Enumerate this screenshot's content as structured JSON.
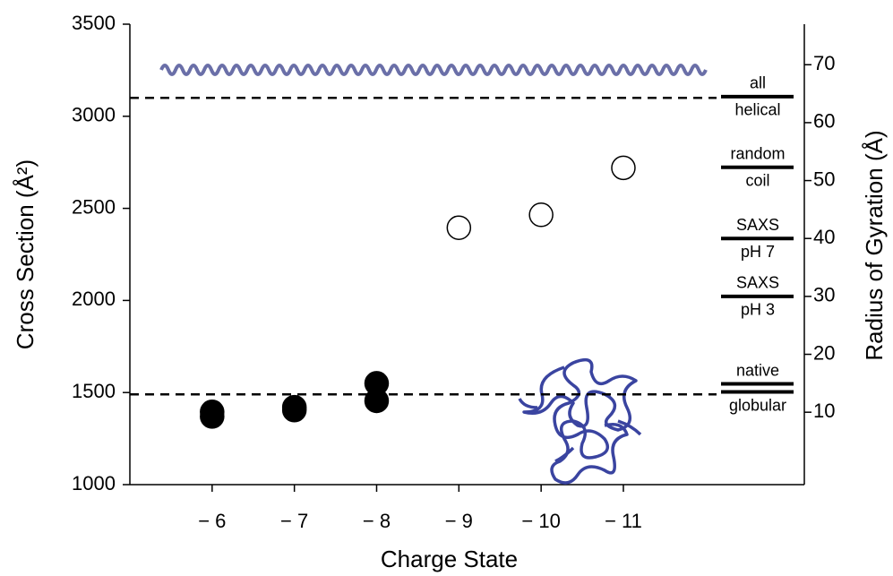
{
  "chart_data": {
    "type": "scatter",
    "x_label": "Charge State",
    "y_label": "Cross Section (Å²)",
    "y2_label": "Radius of Gyration (Å)",
    "xlim": [
      -5,
      -13.2
    ],
    "xticks": [
      {
        "value": -6,
        "label": "− 6"
      },
      {
        "value": -7,
        "label": "− 7"
      },
      {
        "value": -8,
        "label": "− 8"
      },
      {
        "value": -9,
        "label": "− 9"
      },
      {
        "value": -10,
        "label": "− 10"
      },
      {
        "value": -11,
        "label": "− 11"
      }
    ],
    "ylim": [
      1000,
      3500
    ],
    "yticks": [
      1000,
      1500,
      2000,
      2500,
      3000,
      3500
    ],
    "y2lim": [
      -2.5,
      77
    ],
    "y2ticks": [
      10,
      20,
      30,
      40,
      50,
      60,
      70
    ],
    "series": [
      {
        "color": "#000000",
        "fill": "#000000",
        "x": [
          -6,
          -6,
          -7,
          -7,
          -8,
          -8
        ],
        "values": [
          1370,
          1395,
          1405,
          1420,
          1455,
          1550
        ]
      },
      {
        "color": "#000000",
        "fill": "#ffffff",
        "x": [
          -9,
          -10,
          -11
        ],
        "values": [
          2395,
          2465,
          2720
        ]
      }
    ],
    "reference_lines": [
      3100,
      1490
    ],
    "reference_bars": [
      {
        "label_top": "all",
        "label_bottom": "helical",
        "values": [
          64.5
        ]
      },
      {
        "label_top": "random",
        "label_bottom": "coil",
        "values": [
          52.3
        ]
      },
      {
        "label_top": "SAXS",
        "label_bottom": "pH 7",
        "values": [
          40
        ]
      },
      {
        "label_top": "SAXS",
        "label_bottom": "pH 3",
        "values": [
          30
        ]
      },
      {
        "label_top": "native",
        "label_bottom": "globular",
        "values": [
          14.9,
          13.5
        ]
      }
    ]
  }
}
